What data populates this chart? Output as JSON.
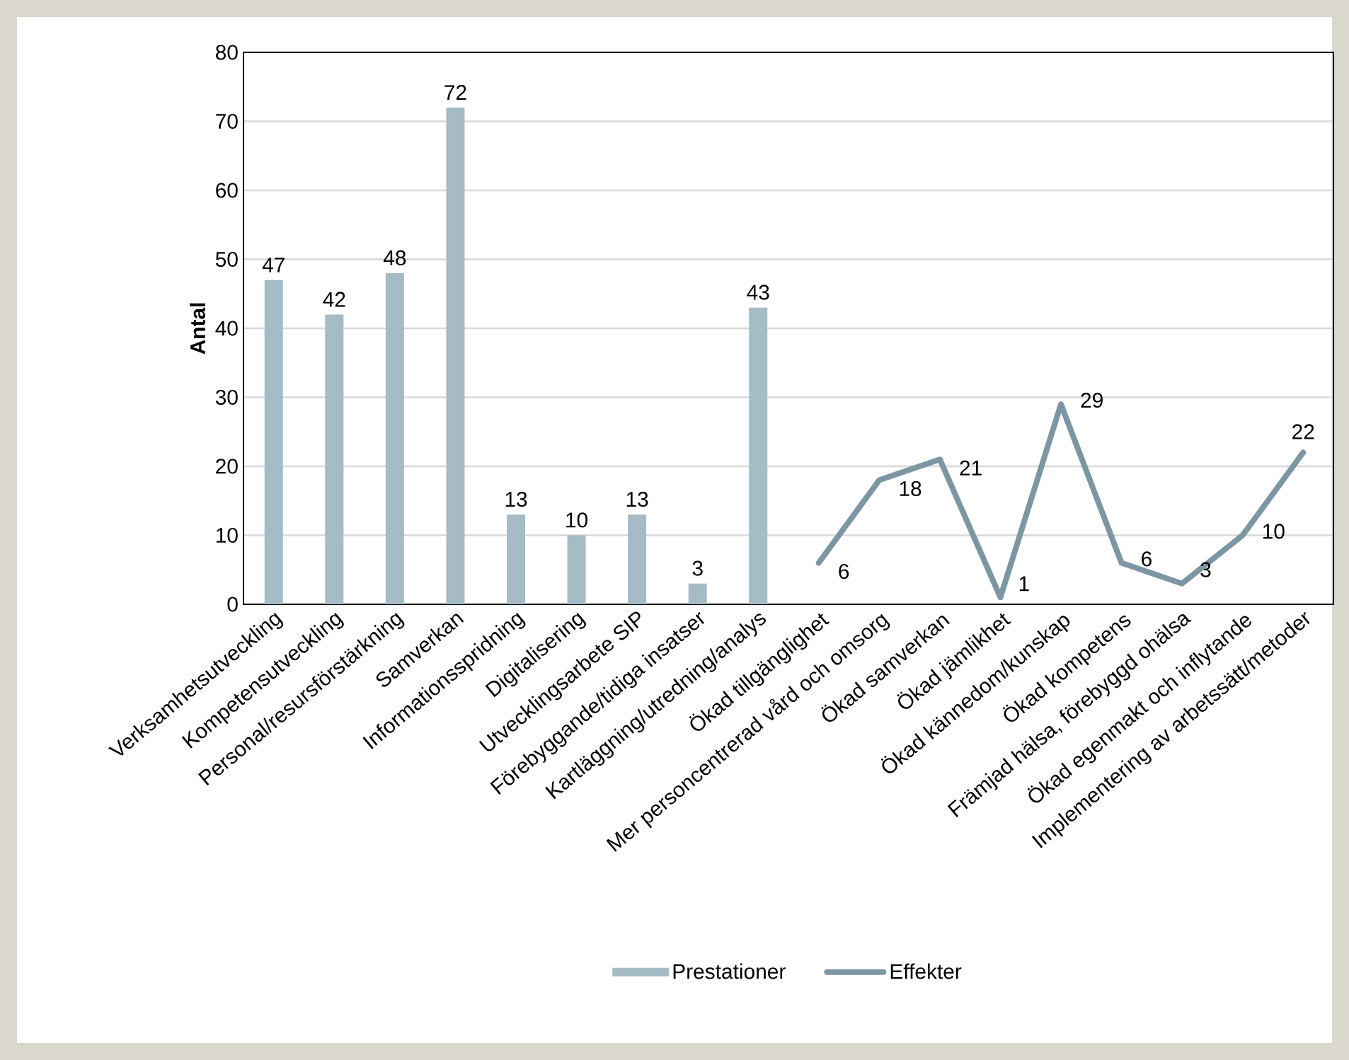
{
  "chart_data": {
    "type": "bar",
    "ylabel": "Antal",
    "categories": [
      "Verksamhetsutveckling",
      "Kompetensutveckling",
      "Personal/resursförstärkning",
      "Samverkan",
      "Informationsspridning",
      "Digitalisering",
      "Utvecklingsarbete SIP",
      "Förebyggande/tidiga insatser",
      "Kartläggning/utredning/analys",
      "Ökad tillgänglighet",
      "Mer personcentrerad vård och omsorg",
      "Ökad samverkan",
      "Ökad jämlikhet",
      "Ökad kännedom/kunskap",
      "Ökad kompetens",
      "Främjad hälsa, förebyggd ohälsa",
      "Ökad egenmakt och inflytande",
      "Implementering av arbetssätt/metoder"
    ],
    "series": [
      {
        "name": "Prestationer",
        "color": "#a5bbc6",
        "values": [
          47,
          42,
          48,
          72,
          13,
          10,
          13,
          3,
          43,
          null,
          null,
          null,
          null,
          null,
          null,
          null,
          null,
          null
        ]
      },
      {
        "name": "Effekter",
        "type": "line",
        "color": "#7d96a4",
        "values": [
          null,
          null,
          null,
          null,
          null,
          null,
          null,
          null,
          null,
          6,
          18,
          21,
          1,
          29,
          6,
          3,
          10,
          22
        ]
      }
    ],
    "ylim": [
      0,
      80
    ],
    "yticks": [
      0,
      10,
      20,
      30,
      40,
      50,
      60,
      70,
      80
    ],
    "grid": "y",
    "legend": "bottom",
    "data_labels": true
  }
}
